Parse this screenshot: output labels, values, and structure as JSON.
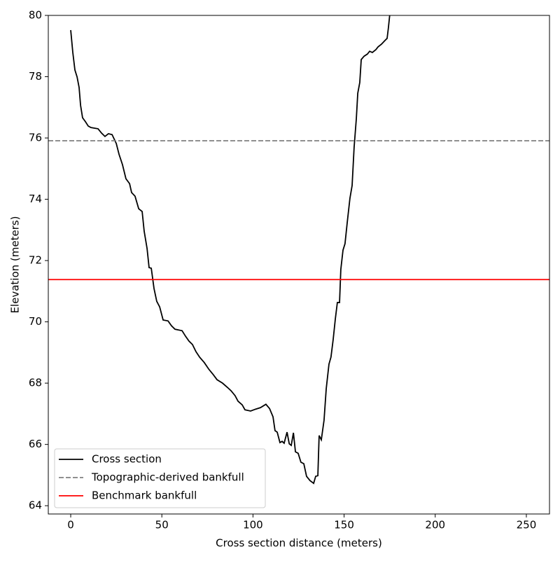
{
  "chart_data": {
    "type": "line",
    "xlabel": "Cross section distance (meters)",
    "ylabel": "Elevation (meters)",
    "xlim": [
      -12.3,
      262.7
    ],
    "ylim": [
      63.73,
      80
    ],
    "xticks": [
      0,
      50,
      100,
      150,
      200,
      250
    ],
    "yticks": [
      64,
      66,
      68,
      70,
      72,
      74,
      76,
      78,
      80
    ],
    "legend": "lower left",
    "series": [
      {
        "name": "Cross section",
        "color": "#000000",
        "x": [
          0,
          1.15,
          2.3,
          3.5,
          4.6,
          5.4,
          6.5,
          8.1,
          9.6,
          11.1,
          15,
          16.9,
          18.8,
          20.7,
          22.7,
          25.0,
          26.5,
          28.4,
          30.3,
          32.3,
          33.4,
          35.3,
          37.3,
          39.2,
          40.3,
          41.9,
          43,
          44.2,
          45.7,
          47.2,
          48.8,
          50.7,
          53.4,
          55.3,
          57.2,
          61.1,
          63,
          64.9,
          66.8,
          68.7,
          70.7,
          73.3,
          75.7,
          78.3,
          80.3,
          83.3,
          86,
          88,
          90.2,
          91.8,
          94.1,
          95.6,
          98.7,
          101.4,
          104.1,
          107.1,
          109.1,
          111,
          112.1,
          113.3,
          114.8,
          116,
          117.1,
          118.7,
          119.9,
          121,
          122.2,
          123.3,
          124.8,
          126.3,
          127.9,
          129.4,
          131.3,
          133.3,
          134.4,
          135.6,
          136.3,
          137.5,
          139,
          140.2,
          141.7,
          142.8,
          144,
          145.2,
          146.3,
          147.5,
          148.2,
          149.4,
          150.5,
          151.7,
          153.2,
          154.4,
          155.5,
          156.7,
          157.5,
          158.6,
          159.4,
          161,
          162.8,
          164,
          165.5,
          167.4,
          168.6,
          170.5,
          172.4,
          173.6,
          174.3,
          175.1
        ],
        "values": [
          79.52,
          78.79,
          78.22,
          77.99,
          77.65,
          77.07,
          76.66,
          76.53,
          76.39,
          76.34,
          76.3,
          76.16,
          76.05,
          76.14,
          76.11,
          75.82,
          75.47,
          75.13,
          74.67,
          74.51,
          74.22,
          74.1,
          73.69,
          73.6,
          72.96,
          72.39,
          71.77,
          71.75,
          71.09,
          70.67,
          70.49,
          70.06,
          70.03,
          69.87,
          69.76,
          69.71,
          69.53,
          69.37,
          69.26,
          69.03,
          68.85,
          68.67,
          68.46,
          68.27,
          68.11,
          68.0,
          67.86,
          67.75,
          67.59,
          67.41,
          67.29,
          67.13,
          67.09,
          67.15,
          67.2,
          67.31,
          67.17,
          66.9,
          66.45,
          66.4,
          66.06,
          66.1,
          66.04,
          66.4,
          66.02,
          65.97,
          66.38,
          65.76,
          65.71,
          65.42,
          65.37,
          64.96,
          64.82,
          64.73,
          64.96,
          64.98,
          66.29,
          66.15,
          66.79,
          67.82,
          68.62,
          68.85,
          69.42,
          70.1,
          70.63,
          70.63,
          71.71,
          72.34,
          72.55,
          73.23,
          74.03,
          74.45,
          75.7,
          76.62,
          77.46,
          77.81,
          78.56,
          78.67,
          78.74,
          78.83,
          78.79,
          78.88,
          78.97,
          79.06,
          79.18,
          79.25,
          79.59,
          80.05
        ]
      }
    ],
    "hlines": [
      {
        "name": "Topographic-derived bankfull",
        "color": "#808080",
        "value": 75.91,
        "dashed": true
      },
      {
        "name": "Benchmark bankfull",
        "color": "#ff0000",
        "value": 71.38,
        "dashed": false
      }
    ]
  }
}
